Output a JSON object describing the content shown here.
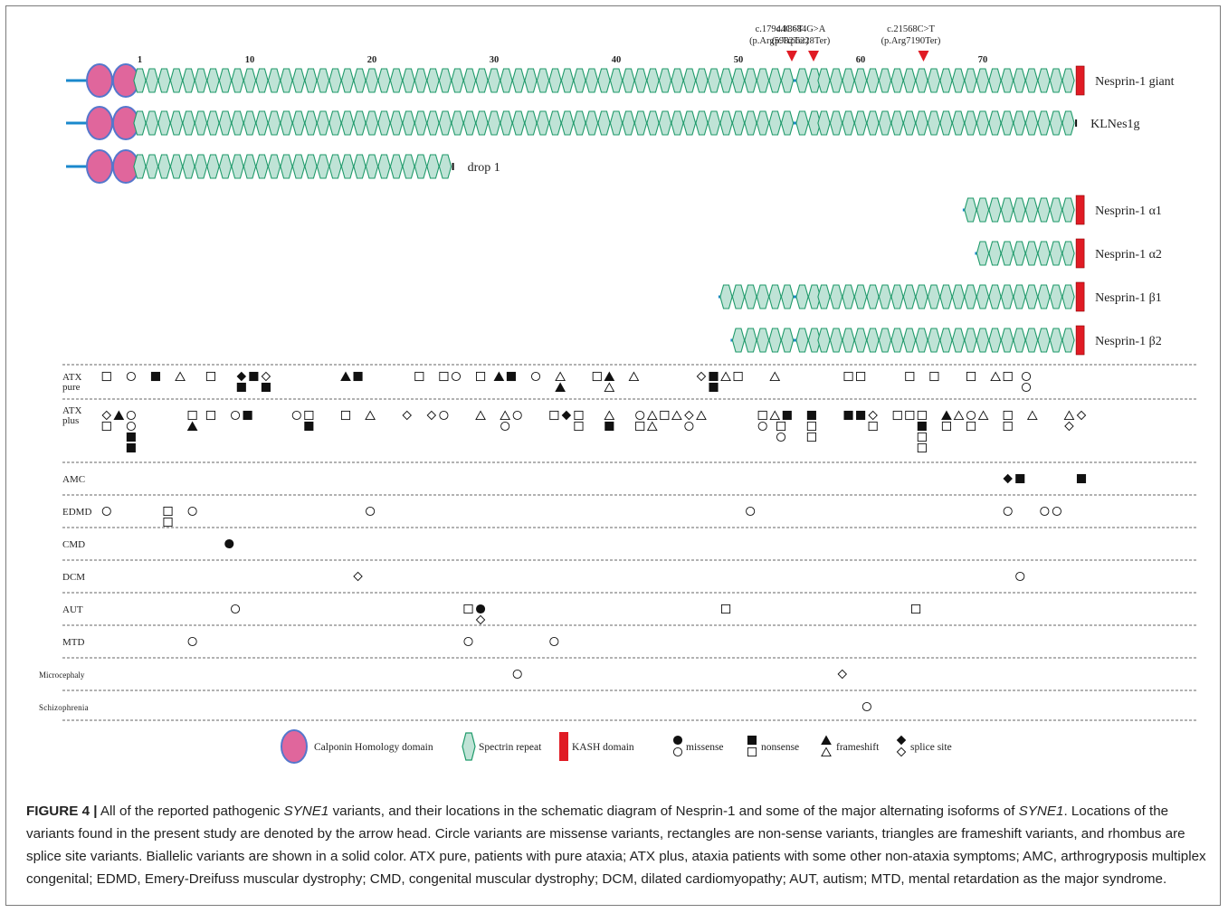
{
  "ruler": [
    {
      "label": "1",
      "rep": 1
    },
    {
      "label": "10",
      "rep": 10
    },
    {
      "label": "20",
      "rep": 20
    },
    {
      "label": "30",
      "rep": 30
    },
    {
      "label": "40",
      "rep": 40
    },
    {
      "label": "50",
      "rep": 50
    },
    {
      "label": "60",
      "rep": 60
    },
    {
      "label": "70",
      "rep": 70
    }
  ],
  "variant_markers": [
    {
      "line1": "c.17944C>T",
      "line2": "(p.Arg5982Ter)",
      "rep": 54
    },
    {
      "line1": "c.18684G>A",
      "line2": "(p.Trp6228Ter)",
      "rep": 56
    },
    {
      "line1": "c.21568C>T",
      "line2": "(p.Arg7190Ter)",
      "rep": 65
    }
  ],
  "isoforms": [
    {
      "label": "Nesprin-1 giant",
      "ch": true,
      "kash": true,
      "start": 1,
      "end": 77
    },
    {
      "label": "KLNes1g",
      "ch": true,
      "kash": false,
      "start": 1,
      "end": 77
    },
    {
      "label": "drop 1",
      "ch": true,
      "kash": false,
      "start": 1,
      "end": 26
    },
    {
      "label": "Nesprin-1 α1",
      "ch": false,
      "kash": true,
      "start": 69,
      "end": 77
    },
    {
      "label": "Nesprin-1 α2",
      "ch": false,
      "kash": true,
      "start": 70,
      "end": 77
    },
    {
      "label": "Nesprin-1 β1",
      "ch": false,
      "kash": true,
      "start": 49,
      "end": 77
    },
    {
      "label": "Nesprin-1 β2",
      "ch": false,
      "kash": true,
      "start": 50,
      "end": 77
    }
  ],
  "phenotype_rows": [
    {
      "label": "ATX",
      "label2": "pure",
      "variants": [
        {
          "rep": 0.5,
          "t": "R",
          "f": 0
        },
        {
          "rep": 2.5,
          "t": "C",
          "f": 0
        },
        {
          "rep": 4.5,
          "t": "R",
          "f": 1
        },
        {
          "rep": 6.5,
          "t": "T",
          "f": 0
        },
        {
          "rep": 9,
          "t": "R",
          "f": 0
        },
        {
          "rep": 11.5,
          "t": "D",
          "f": 1
        },
        {
          "rep": 11.5,
          "t": "R",
          "f": 1,
          "s": 1
        },
        {
          "rep": 12.5,
          "t": "R",
          "f": 1
        },
        {
          "rep": 13.5,
          "t": "D",
          "f": 0
        },
        {
          "rep": 13.5,
          "t": "R",
          "f": 1,
          "s": 1
        },
        {
          "rep": 20,
          "t": "T",
          "f": 1
        },
        {
          "rep": 21,
          "t": "R",
          "f": 1
        },
        {
          "rep": 26,
          "t": "R",
          "f": 0
        },
        {
          "rep": 28,
          "t": "R",
          "f": 0
        },
        {
          "rep": 29,
          "t": "C",
          "f": 0
        },
        {
          "rep": 31,
          "t": "R",
          "f": 0
        },
        {
          "rep": 32.5,
          "t": "T",
          "f": 1
        },
        {
          "rep": 33.5,
          "t": "R",
          "f": 1
        },
        {
          "rep": 35.5,
          "t": "C",
          "f": 0
        },
        {
          "rep": 37.5,
          "t": "T",
          "f": 0
        },
        {
          "rep": 37.5,
          "t": "T",
          "f": 1,
          "s": 1
        },
        {
          "rep": 40.5,
          "t": "R",
          "f": 0
        },
        {
          "rep": 41.5,
          "t": "T",
          "f": 1
        },
        {
          "rep": 41.5,
          "t": "T",
          "f": 0,
          "s": 1
        },
        {
          "rep": 43.5,
          "t": "T",
          "f": 0
        },
        {
          "rep": 49,
          "t": "D",
          "f": 0
        },
        {
          "rep": 50,
          "t": "R",
          "f": 1
        },
        {
          "rep": 50,
          "t": "R",
          "f": 1,
          "s": 1
        },
        {
          "rep": 51,
          "t": "T",
          "f": 0
        },
        {
          "rep": 52,
          "t": "R",
          "f": 0
        },
        {
          "rep": 55,
          "t": "T",
          "f": 0
        },
        {
          "rep": 61,
          "t": "R",
          "f": 0
        },
        {
          "rep": 62,
          "t": "R",
          "f": 0
        },
        {
          "rep": 66,
          "t": "R",
          "f": 0
        },
        {
          "rep": 68,
          "t": "R",
          "f": 0
        },
        {
          "rep": 71,
          "t": "R",
          "f": 0
        },
        {
          "rep": 73,
          "t": "T",
          "f": 0
        },
        {
          "rep": 74,
          "t": "R",
          "f": 0
        },
        {
          "rep": 75.5,
          "t": "C",
          "f": 0
        },
        {
          "rep": 75.5,
          "t": "C",
          "f": 0,
          "s": 1
        }
      ]
    },
    {
      "label": "ATX",
      "label2": "plus",
      "variants": [
        {
          "rep": 0.5,
          "t": "D",
          "f": 0
        },
        {
          "rep": 1.5,
          "t": "T",
          "f": 1
        },
        {
          "rep": 2.5,
          "t": "C",
          "f": 0
        },
        {
          "rep": 0.5,
          "t": "R",
          "f": 0,
          "s": 1
        },
        {
          "rep": 2.5,
          "t": "C",
          "f": 0,
          "s": 1
        },
        {
          "rep": 2.5,
          "t": "R",
          "f": 1,
          "s": 2
        },
        {
          "rep": 2.5,
          "t": "R",
          "f": 1,
          "s": 3
        },
        {
          "rep": 7.5,
          "t": "R",
          "f": 0
        },
        {
          "rep": 7.5,
          "t": "T",
          "f": 1,
          "s": 1
        },
        {
          "rep": 9,
          "t": "R",
          "f": 0
        },
        {
          "rep": 11,
          "t": "C",
          "f": 0
        },
        {
          "rep": 12,
          "t": "R",
          "f": 1
        },
        {
          "rep": 16,
          "t": "C",
          "f": 0
        },
        {
          "rep": 17,
          "t": "R",
          "f": 0
        },
        {
          "rep": 17,
          "t": "R",
          "f": 1,
          "s": 1
        },
        {
          "rep": 20,
          "t": "R",
          "f": 0
        },
        {
          "rep": 22,
          "t": "T",
          "f": 0
        },
        {
          "rep": 25,
          "t": "D",
          "f": 0
        },
        {
          "rep": 27,
          "t": "D",
          "f": 0
        },
        {
          "rep": 28,
          "t": "C",
          "f": 0
        },
        {
          "rep": 31,
          "t": "T",
          "f": 0
        },
        {
          "rep": 33,
          "t": "T",
          "f": 0
        },
        {
          "rep": 34,
          "t": "C",
          "f": 0
        },
        {
          "rep": 33,
          "t": "C",
          "f": 0,
          "s": 1
        },
        {
          "rep": 37,
          "t": "R",
          "f": 0
        },
        {
          "rep": 38,
          "t": "D",
          "f": 1
        },
        {
          "rep": 39,
          "t": "R",
          "f": 0
        },
        {
          "rep": 39,
          "t": "R",
          "f": 0,
          "s": 1
        },
        {
          "rep": 41.5,
          "t": "T",
          "f": 0
        },
        {
          "rep": 41.5,
          "t": "R",
          "f": 1,
          "s": 1
        },
        {
          "rep": 44,
          "t": "C",
          "f": 0
        },
        {
          "rep": 45,
          "t": "T",
          "f": 0
        },
        {
          "rep": 44,
          "t": "R",
          "f": 0,
          "s": 1
        },
        {
          "rep": 45,
          "t": "T",
          "f": 0,
          "s": 1
        },
        {
          "rep": 46,
          "t": "R",
          "f": 0
        },
        {
          "rep": 47,
          "t": "T",
          "f": 0
        },
        {
          "rep": 48,
          "t": "D",
          "f": 0
        },
        {
          "rep": 49,
          "t": "T",
          "f": 0
        },
        {
          "rep": 48,
          "t": "C",
          "f": 0,
          "s": 1
        },
        {
          "rep": 54,
          "t": "R",
          "f": 0
        },
        {
          "rep": 54,
          "t": "C",
          "f": 0,
          "s": 1
        },
        {
          "rep": 55,
          "t": "T",
          "f": 0
        },
        {
          "rep": 56,
          "t": "R",
          "f": 1
        },
        {
          "rep": 55.5,
          "t": "R",
          "f": 0,
          "s": 1
        },
        {
          "rep": 55.5,
          "t": "C",
          "f": 0,
          "s": 2
        },
        {
          "rep": 58,
          "t": "R",
          "f": 1
        },
        {
          "rep": 58,
          "t": "R",
          "f": 0,
          "s": 1
        },
        {
          "rep": 58,
          "t": "R",
          "f": 0,
          "s": 2
        },
        {
          "rep": 61,
          "t": "R",
          "f": 1
        },
        {
          "rep": 62,
          "t": "R",
          "f": 1
        },
        {
          "rep": 63,
          "t": "D",
          "f": 0
        },
        {
          "rep": 63,
          "t": "R",
          "f": 0,
          "s": 1
        },
        {
          "rep": 65,
          "t": "R",
          "f": 0
        },
        {
          "rep": 66,
          "t": "R",
          "f": 0
        },
        {
          "rep": 67,
          "t": "R",
          "f": 0
        },
        {
          "rep": 67,
          "t": "R",
          "f": 1,
          "s": 1
        },
        {
          "rep": 67,
          "t": "R",
          "f": 0,
          "s": 2
        },
        {
          "rep": 67,
          "t": "R",
          "f": 0,
          "s": 3
        },
        {
          "rep": 69,
          "t": "T",
          "f": 1
        },
        {
          "rep": 70,
          "t": "T",
          "f": 0
        },
        {
          "rep": 71,
          "t": "C",
          "f": 0
        },
        {
          "rep": 72,
          "t": "T",
          "f": 0
        },
        {
          "rep": 69,
          "t": "R",
          "f": 0,
          "s": 1
        },
        {
          "rep": 71,
          "t": "R",
          "f": 0,
          "s": 1
        },
        {
          "rep": 74,
          "t": "R",
          "f": 0
        },
        {
          "rep": 74,
          "t": "R",
          "f": 0,
          "s": 1
        },
        {
          "rep": 76,
          "t": "T",
          "f": 0
        },
        {
          "rep": 79,
          "t": "T",
          "f": 0
        },
        {
          "rep": 80,
          "t": "D",
          "f": 0
        },
        {
          "rep": 79,
          "t": "D",
          "f": 0,
          "s": 1
        }
      ]
    },
    {
      "label": "AMC",
      "label2": "",
      "variants": [
        {
          "rep": 74,
          "t": "D",
          "f": 1
        },
        {
          "rep": 75,
          "t": "R",
          "f": 1
        },
        {
          "rep": 80,
          "t": "R",
          "f": 1
        }
      ]
    },
    {
      "label": "EDMD",
      "label2": "",
      "variants": [
        {
          "rep": 0.5,
          "t": "C",
          "f": 0
        },
        {
          "rep": 5.5,
          "t": "R",
          "f": 0
        },
        {
          "rep": 5.5,
          "t": "R",
          "f": 0,
          "s": 1
        },
        {
          "rep": 7.5,
          "t": "C",
          "f": 0
        },
        {
          "rep": 22,
          "t": "C",
          "f": 0
        },
        {
          "rep": 53,
          "t": "C",
          "f": 0
        },
        {
          "rep": 74,
          "t": "C",
          "f": 0
        },
        {
          "rep": 77,
          "t": "C",
          "f": 0
        },
        {
          "rep": 78,
          "t": "C",
          "f": 0
        }
      ]
    },
    {
      "label": "CMD",
      "label2": "",
      "variants": [
        {
          "rep": 10.5,
          "t": "C",
          "f": 1
        }
      ]
    },
    {
      "label": "DCM",
      "label2": "",
      "variants": [
        {
          "rep": 21,
          "t": "D",
          "f": 0
        },
        {
          "rep": 75,
          "t": "C",
          "f": 0
        }
      ]
    },
    {
      "label": "AUT",
      "label2": "",
      "variants": [
        {
          "rep": 11,
          "t": "C",
          "f": 0
        },
        {
          "rep": 30,
          "t": "R",
          "f": 0
        },
        {
          "rep": 31,
          "t": "C",
          "f": 1
        },
        {
          "rep": 31,
          "t": "D",
          "f": 0,
          "s": 1
        },
        {
          "rep": 51,
          "t": "R",
          "f": 0
        },
        {
          "rep": 66.5,
          "t": "R",
          "f": 0
        }
      ]
    },
    {
      "label": "MTD",
      "label2": "",
      "variants": [
        {
          "rep": 7.5,
          "t": "C",
          "f": 0
        },
        {
          "rep": 30,
          "t": "C",
          "f": 0
        },
        {
          "rep": 37,
          "t": "C",
          "f": 0
        }
      ]
    },
    {
      "label": "Microcephaly",
      "label2": "",
      "variants": [
        {
          "rep": 34,
          "t": "C",
          "f": 0
        },
        {
          "rep": 60.5,
          "t": "D",
          "f": 0
        }
      ]
    },
    {
      "label": "Schizophrenia",
      "label2": "",
      "variants": [
        {
          "rep": 62.5,
          "t": "C",
          "f": 0
        }
      ]
    }
  ],
  "legend": {
    "ch": "Calponin Homology domain",
    "spectrin": "Spectrin repeat",
    "kash": "KASH domain",
    "missense": "missense",
    "nonsense": "nonsense",
    "frameshift": "frameshift",
    "splice": "splice site"
  },
  "caption": {
    "fig": "FIGURE 4 |",
    "t1": " All of the reported pathogenic ",
    "gene1": "SYNE1",
    "t2": " variants, and their locations in the schematic diagram of Nesprin-1 and some of the major alternating isoforms of ",
    "gene2": "SYNE1",
    "t3": ". Locations of the variants found in the present study are denoted by the arrow head. Circle variants are missense variants, rectangles are non-sense variants, triangles are frameshift variants, and rhombus are splice site variants. Biallelic variants are shown in a solid color. ATX pure, patients with pure ataxia; ATX plus, ataxia patients with some other non-ataxia symptoms; AMC, arthrogryposis multiplex congenital; EDMD, Emery-Dreifuss muscular dystrophy; CMD, congenital muscular dystrophy; DCM, dilated cardiomyopathy; AUT, autism; MTD, mental retardation as the major syndrome."
  },
  "colors": {
    "spectrin_fill": "#bfe3d6",
    "spectrin_stroke": "#1f9a6a",
    "ch_fill": "#e0669c",
    "ch_stroke": "#5577cc",
    "linker": "#1a88cc",
    "kash": "#e01b24",
    "arrow": "#e01b24",
    "marker": "#111111"
  }
}
